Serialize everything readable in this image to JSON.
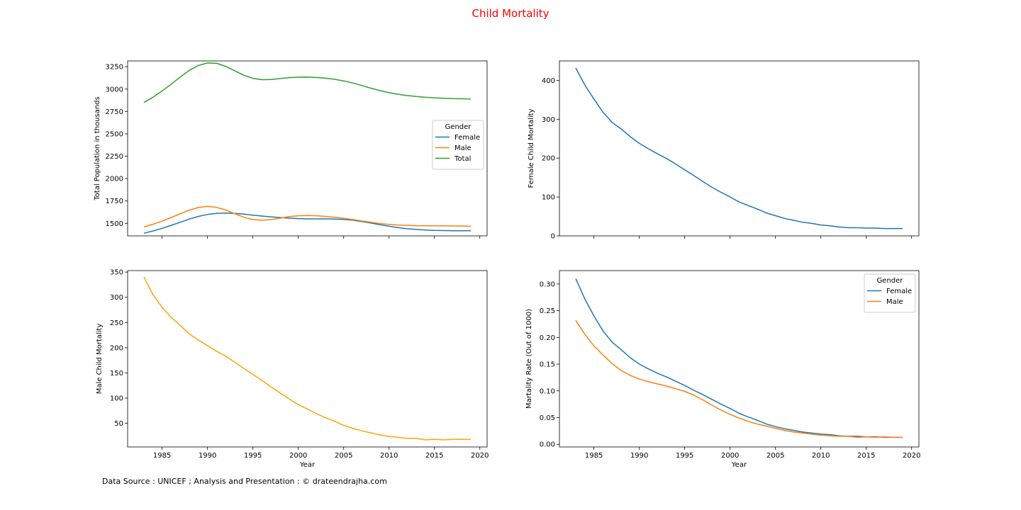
{
  "figure": {
    "title": "Child Mortality",
    "title_color": "#ff0000",
    "footer": "Data Source : UNICEF ; Analysis and Presentation : © drateendrajha.com"
  },
  "chart_data": [
    {
      "type": "line",
      "ylabel": "Total Population in thousands",
      "xlabel": "",
      "xlim": [
        1981.2,
        2020.8
      ],
      "ylim": [
        1360,
        3315
      ],
      "xticks": [
        1985,
        1990,
        1995,
        2000,
        2005,
        2010,
        2015,
        2020
      ],
      "show_xticklabels": false,
      "yticks": [
        1500,
        1750,
        2000,
        2250,
        2500,
        2750,
        3000,
        3250
      ],
      "legend": {
        "title": "Gender",
        "position": "right",
        "entries": [
          "Female",
          "Male",
          "Total"
        ]
      },
      "x": [
        1983,
        1984,
        1985,
        1986,
        1987,
        1988,
        1989,
        1990,
        1991,
        1992,
        1993,
        1994,
        1995,
        1996,
        1997,
        1998,
        1999,
        2000,
        2001,
        2002,
        2003,
        2004,
        2005,
        2006,
        2007,
        2008,
        2009,
        2010,
        2011,
        2012,
        2013,
        2014,
        2015,
        2016,
        2017,
        2018,
        2019
      ],
      "series": [
        {
          "name": "Female",
          "color": "#1f77b4",
          "values": [
            1390,
            1415,
            1445,
            1478,
            1512,
            1548,
            1578,
            1600,
            1612,
            1616,
            1612,
            1603,
            1592,
            1582,
            1573,
            1565,
            1558,
            1553,
            1550,
            1550,
            1550,
            1548,
            1544,
            1535,
            1520,
            1503,
            1485,
            1468,
            1452,
            1440,
            1432,
            1425,
            1421,
            1419,
            1418,
            1418,
            1418
          ]
        },
        {
          "name": "Male",
          "color": "#ff7f0e",
          "values": [
            1460,
            1490,
            1525,
            1565,
            1608,
            1648,
            1677,
            1690,
            1678,
            1650,
            1608,
            1568,
            1542,
            1535,
            1542,
            1558,
            1575,
            1585,
            1588,
            1585,
            1578,
            1568,
            1556,
            1542,
            1526,
            1512,
            1498,
            1488,
            1480,
            1476,
            1474,
            1473,
            1472,
            1472,
            1471,
            1470,
            1468
          ]
        },
        {
          "name": "Total",
          "color": "#2ca02c",
          "values": [
            2850,
            2910,
            2980,
            3055,
            3135,
            3210,
            3265,
            3292,
            3288,
            3255,
            3205,
            3155,
            3120,
            3105,
            3107,
            3118,
            3128,
            3134,
            3135,
            3130,
            3122,
            3110,
            3092,
            3068,
            3040,
            3010,
            2983,
            2960,
            2942,
            2928,
            2918,
            2910,
            2903,
            2898,
            2894,
            2892,
            2890
          ]
        }
      ]
    },
    {
      "type": "line",
      "ylabel": "Female Child Mortality",
      "xlabel": "",
      "xlim": [
        1981.2,
        2020.8
      ],
      "ylim": [
        0,
        450
      ],
      "xticks": [
        1985,
        1990,
        1995,
        2000,
        2005,
        2010,
        2015,
        2020
      ],
      "show_xticklabels": false,
      "yticks": [
        0,
        100,
        200,
        300,
        400
      ],
      "x": [
        1983,
        1984,
        1985,
        1986,
        1987,
        1988,
        1989,
        1990,
        1991,
        1992,
        1993,
        1994,
        1995,
        1996,
        1997,
        1998,
        1999,
        2000,
        2001,
        2002,
        2003,
        2004,
        2005,
        2006,
        2007,
        2008,
        2009,
        2010,
        2011,
        2012,
        2013,
        2014,
        2015,
        2016,
        2017,
        2018,
        2019
      ],
      "series": [
        {
          "name": "",
          "color": "#1f77b4",
          "values": [
            432,
            388,
            352,
            318,
            292,
            275,
            255,
            238,
            224,
            211,
            199,
            185,
            170,
            155,
            140,
            125,
            112,
            100,
            87,
            78,
            69,
            59,
            52,
            45,
            40,
            35,
            32,
            28,
            26,
            23,
            21,
            21,
            20,
            20,
            19,
            19,
            19
          ]
        }
      ]
    },
    {
      "type": "line",
      "ylabel": "Male Child Mortality",
      "xlabel": "Year",
      "xlim": [
        1981.2,
        2020.8
      ],
      "ylim": [
        3,
        353
      ],
      "xticks": [
        1985,
        1990,
        1995,
        2000,
        2005,
        2010,
        2015,
        2020
      ],
      "show_xticklabels": true,
      "yticks": [
        50,
        100,
        150,
        200,
        250,
        300,
        350
      ],
      "x": [
        1983,
        1984,
        1985,
        1986,
        1987,
        1988,
        1989,
        1990,
        1991,
        1992,
        1993,
        1994,
        1995,
        1996,
        1997,
        1998,
        1999,
        2000,
        2001,
        2002,
        2003,
        2004,
        2005,
        2006,
        2007,
        2008,
        2009,
        2010,
        2011,
        2012,
        2013,
        2014,
        2015,
        2016,
        2017,
        2018,
        2019
      ],
      "series": [
        {
          "name": "",
          "color": "#ffa500",
          "values": [
            340,
            305,
            280,
            260,
            244,
            227,
            215,
            204,
            193,
            183,
            171,
            159,
            147,
            135,
            122,
            110,
            98,
            87,
            78,
            69,
            61,
            54,
            46,
            40,
            35,
            31,
            27,
            24,
            22,
            20,
            20,
            17,
            18,
            17,
            18,
            18,
            18
          ]
        }
      ]
    },
    {
      "type": "line",
      "ylabel": "Martality Rate (Out of 1000)",
      "xlabel": "Year",
      "xlim": [
        1981.2,
        2020.8
      ],
      "ylim": [
        -0.005,
        0.325
      ],
      "xticks": [
        1985,
        1990,
        1995,
        2000,
        2005,
        2010,
        2015,
        2020
      ],
      "show_xticklabels": true,
      "yticks": [
        0.0,
        0.05,
        0.1,
        0.15,
        0.2,
        0.25,
        0.3
      ],
      "ytick_decimals": 2,
      "legend": {
        "title": "Gender",
        "position": "upper right",
        "entries": [
          "Female",
          "Male"
        ]
      },
      "x": [
        1983,
        1984,
        1985,
        1986,
        1987,
        1988,
        1989,
        1990,
        1991,
        1992,
        1993,
        1994,
        1995,
        1996,
        1997,
        1998,
        1999,
        2000,
        2001,
        2002,
        2003,
        2004,
        2005,
        2006,
        2007,
        2008,
        2009,
        2010,
        2011,
        2012,
        2013,
        2014,
        2015,
        2016,
        2017,
        2018,
        2019
      ],
      "series": [
        {
          "name": "Female",
          "color": "#1f77b4",
          "values": [
            0.31,
            0.272,
            0.24,
            0.212,
            0.191,
            0.177,
            0.162,
            0.15,
            0.141,
            0.133,
            0.126,
            0.118,
            0.11,
            0.101,
            0.093,
            0.084,
            0.075,
            0.067,
            0.058,
            0.051,
            0.045,
            0.038,
            0.033,
            0.029,
            0.026,
            0.023,
            0.021,
            0.019,
            0.018,
            0.016,
            0.015,
            0.015,
            0.014,
            0.014,
            0.013,
            0.013,
            0.013
          ]
        },
        {
          "name": "Male",
          "color": "#ff7f0e",
          "values": [
            0.232,
            0.206,
            0.184,
            0.167,
            0.151,
            0.138,
            0.129,
            0.122,
            0.117,
            0.113,
            0.109,
            0.104,
            0.099,
            0.092,
            0.083,
            0.073,
            0.064,
            0.056,
            0.049,
            0.043,
            0.038,
            0.034,
            0.03,
            0.026,
            0.023,
            0.021,
            0.019,
            0.017,
            0.016,
            0.015,
            0.015,
            0.013,
            0.014,
            0.013,
            0.014,
            0.013,
            0.013
          ]
        }
      ]
    }
  ]
}
